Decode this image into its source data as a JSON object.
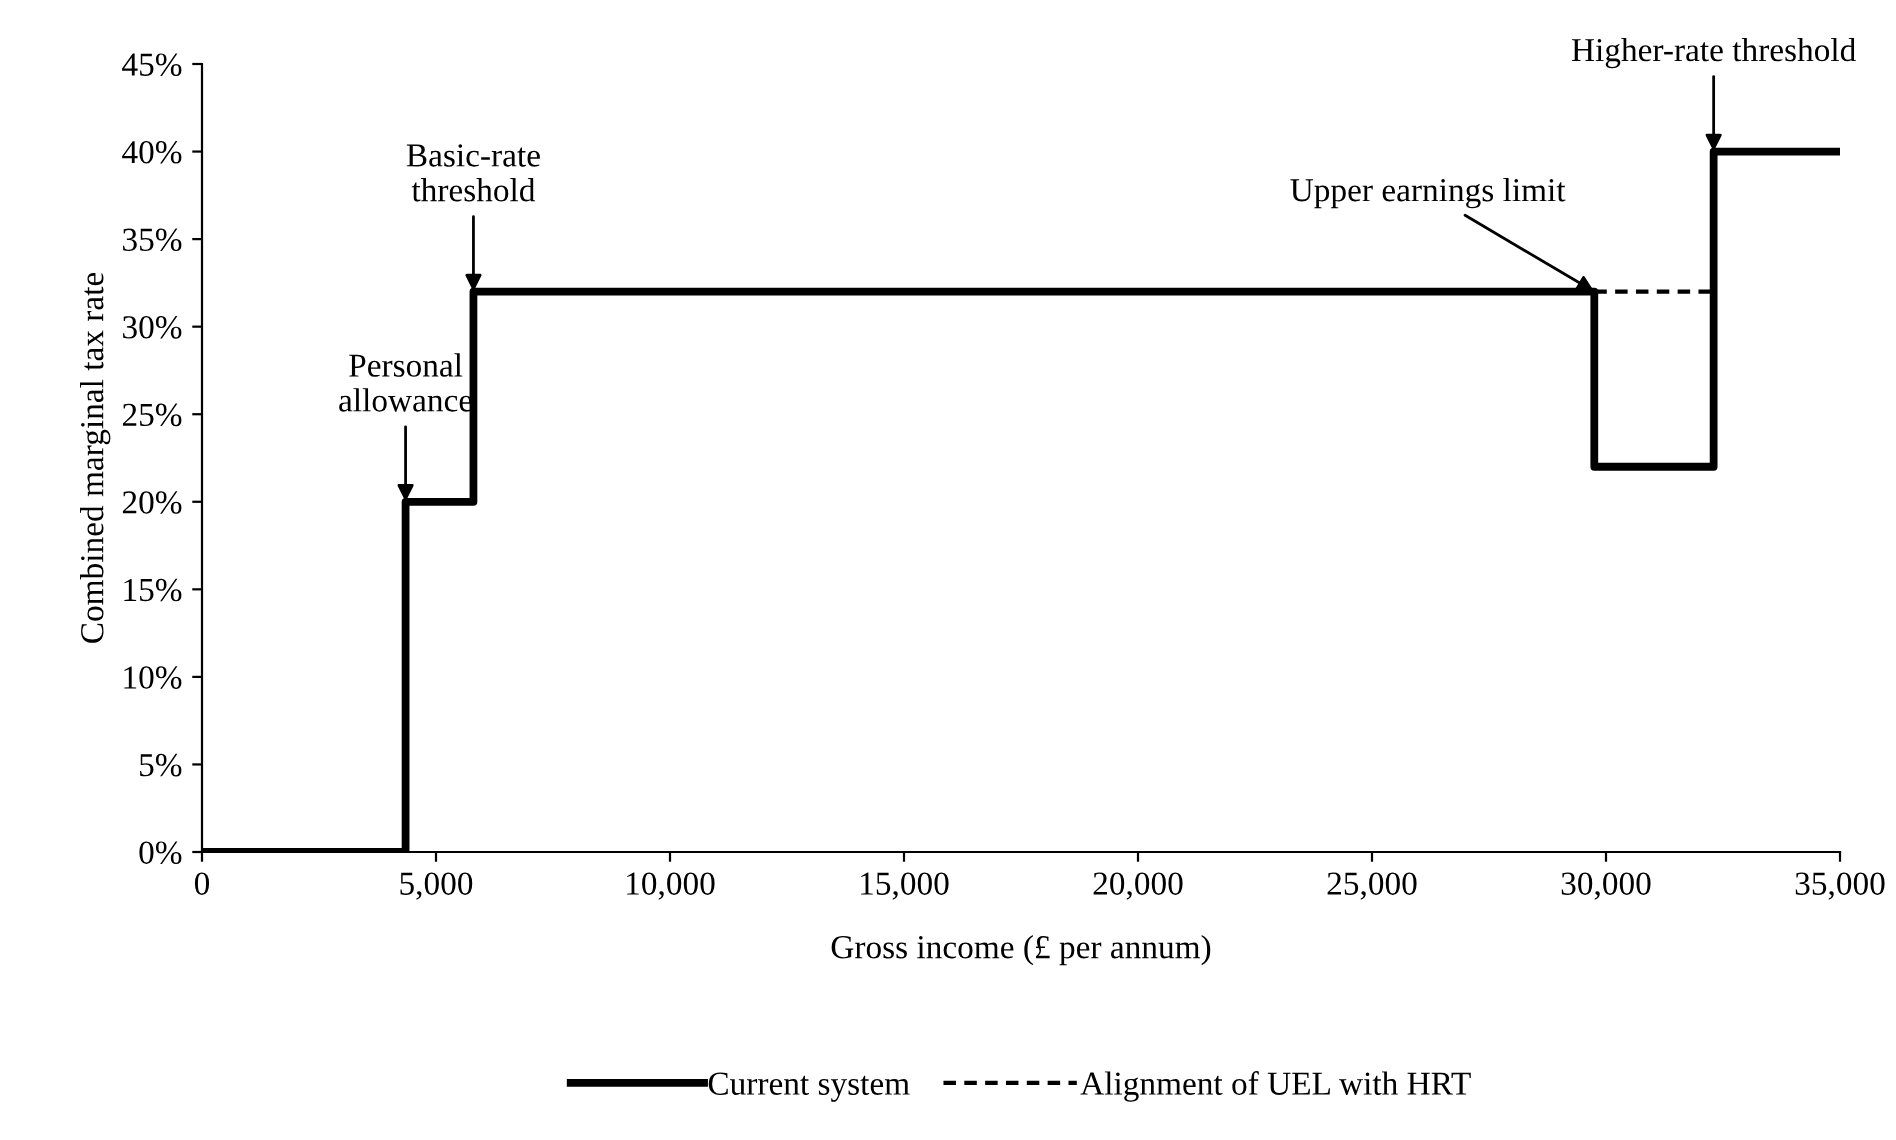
{
  "chart_data": {
    "type": "step",
    "xlabel": "Gross income (£ per annum)",
    "ylabel": "Combined marginal tax rate",
    "xlim": [
      0,
      35000
    ],
    "xticks": [
      {
        "value": 0,
        "label": "0"
      },
      {
        "value": 5000,
        "label": "5,000"
      },
      {
        "value": 10000,
        "label": "10,000"
      },
      {
        "value": 15000,
        "label": "15,000"
      },
      {
        "value": 20000,
        "label": "20,000"
      },
      {
        "value": 25000,
        "label": "25,000"
      },
      {
        "value": 30000,
        "label": "30,000"
      },
      {
        "value": 35000,
        "label": "35,000"
      }
    ],
    "ylim": [
      0,
      45
    ],
    "yticks": [
      {
        "value": 0,
        "label": "0%"
      },
      {
        "value": 5,
        "label": "5%"
      },
      {
        "value": 10,
        "label": "10%"
      },
      {
        "value": 15,
        "label": "15%"
      },
      {
        "value": 20,
        "label": "20%"
      },
      {
        "value": 25,
        "label": "25%"
      },
      {
        "value": 30,
        "label": "30%"
      },
      {
        "value": 35,
        "label": "35%"
      },
      {
        "value": 40,
        "label": "40%"
      },
      {
        "value": 45,
        "label": "45%"
      }
    ],
    "series": [
      {
        "name": "Current system",
        "color": "#000000",
        "line_style": "solid",
        "x": [
          0,
          4350,
          5800,
          29750,
          32300,
          35000
        ],
        "values": [
          0,
          20,
          32,
          22,
          40,
          40
        ]
      },
      {
        "name": "Alignment of UEL with HRT",
        "type": "line",
        "color": "#000000",
        "line_style": "dashed",
        "x": [
          29750,
          32300
        ],
        "values": [
          32,
          32
        ]
      }
    ],
    "annotations": [
      {
        "text": "Personal\nallowance",
        "x": 4350,
        "y": 20
      },
      {
        "text": "Basic-rate\nthreshold",
        "x": 5800,
        "y": 32
      },
      {
        "text": "Upper earnings limit",
        "x": 29750,
        "y": 32
      },
      {
        "text": "Higher-rate threshold",
        "x": 32300,
        "y": 40
      }
    ],
    "grid": false,
    "legend": "bottom"
  }
}
